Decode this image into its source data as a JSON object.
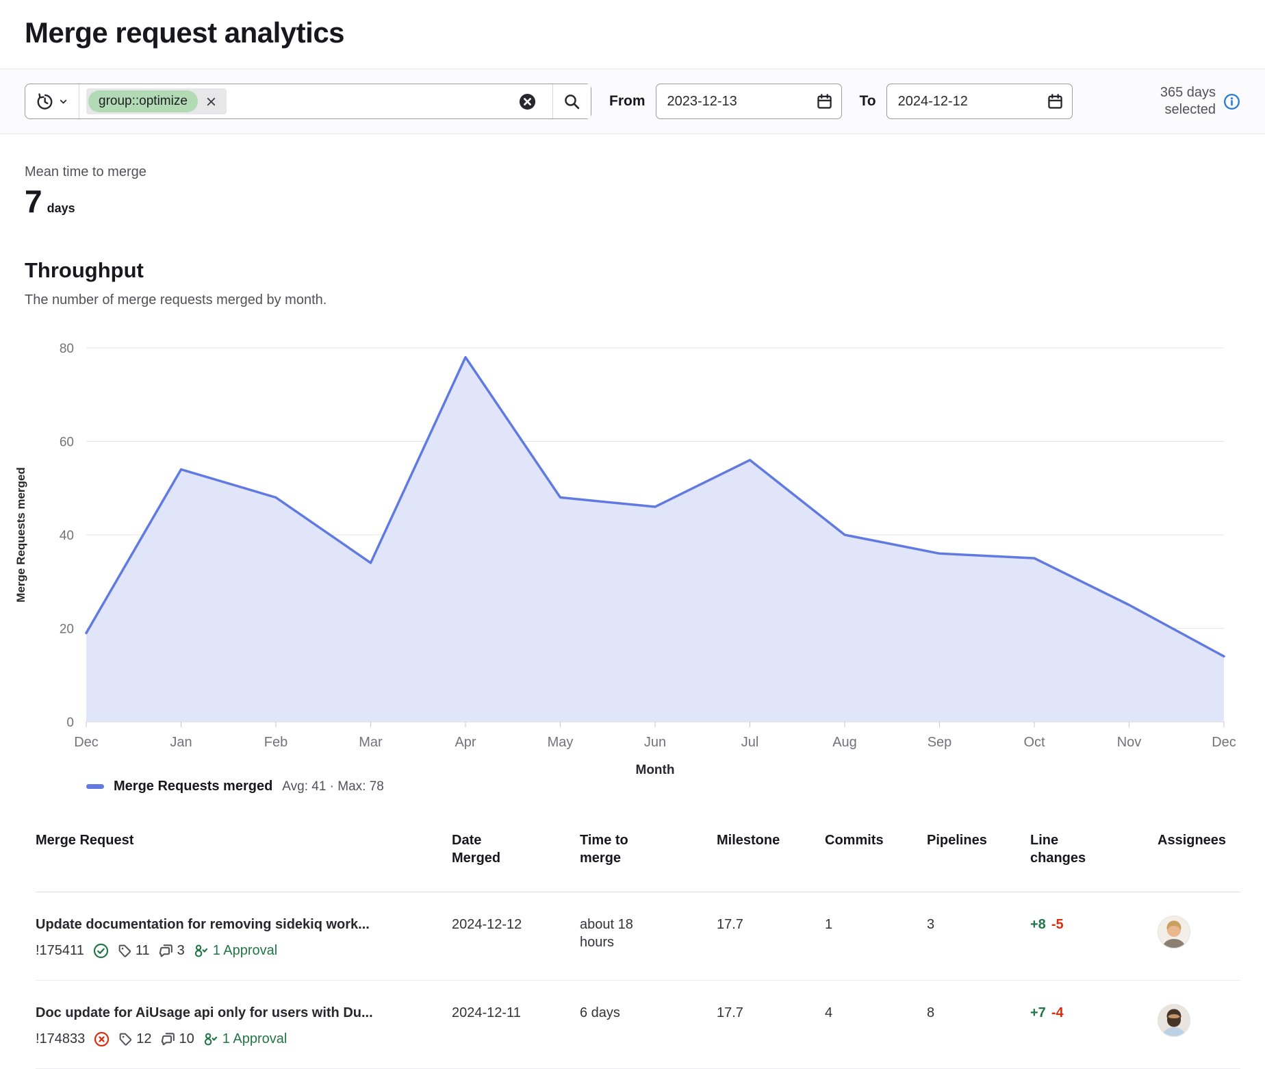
{
  "page": {
    "title": "Merge request analytics"
  },
  "filters": {
    "token": "group::optimize",
    "from_label": "From",
    "from_value": "2023-12-13",
    "to_label": "To",
    "to_value": "2024-12-12",
    "days_selected": "365 days selected"
  },
  "metric": {
    "label": "Mean time to merge",
    "value": "7",
    "unit": "days"
  },
  "throughput": {
    "title": "Throughput",
    "description": "The number of merge requests merged by month."
  },
  "chart_data": {
    "type": "area",
    "x": [
      "Dec",
      "Jan",
      "Feb",
      "Mar",
      "Apr",
      "May",
      "Jun",
      "Jul",
      "Aug",
      "Sep",
      "Oct",
      "Nov",
      "Dec"
    ],
    "series": [
      {
        "name": "Merge Requests merged",
        "values": [
          19,
          54,
          48,
          34,
          78,
          48,
          46,
          56,
          40,
          36,
          35,
          25,
          14
        ]
      }
    ],
    "xlabel": "Month",
    "ylabel": "Merge Requests merged",
    "ylim": [
      0,
      80
    ],
    "yticks": [
      0,
      20,
      40,
      60,
      80
    ],
    "grid": true,
    "legend_position": "bottom-left",
    "legend": {
      "label": "Merge Requests merged",
      "stats": "Avg: 41 · Max: 78"
    },
    "line_color": "#617ae2",
    "fill_color": "#e1e5f9"
  },
  "colors": {
    "accent_blue": "#1f75cb",
    "success_green": "#217645",
    "danger_red": "#dd2b0e",
    "token_green": "#b2dab4",
    "chart_line": "#617ae2"
  },
  "table": {
    "headers": [
      "Merge Request",
      "Date Merged",
      "Time to merge",
      "Milestone",
      "Commits",
      "Pipelines",
      "Line changes",
      "Assignees"
    ],
    "rows": [
      {
        "title": "Update documentation for removing sidekiq work...",
        "mr_id": "!175411",
        "status": "success",
        "labels_count": "11",
        "comments_count": "3",
        "approvals": "1 Approval",
        "date_merged": "2024-12-12",
        "time_to_merge": "about 18 hours",
        "milestone": "17.7",
        "commits": "1",
        "pipelines": "3",
        "additions": "+8",
        "deletions": "-5"
      },
      {
        "title": "Doc update for AiUsage api only for users with Du...",
        "mr_id": "!174833",
        "status": "failed",
        "labels_count": "12",
        "comments_count": "10",
        "approvals": "1 Approval",
        "date_merged": "2024-12-11",
        "time_to_merge": "6 days",
        "milestone": "17.7",
        "commits": "4",
        "pipelines": "8",
        "additions": "+7",
        "deletions": "-4"
      }
    ]
  }
}
